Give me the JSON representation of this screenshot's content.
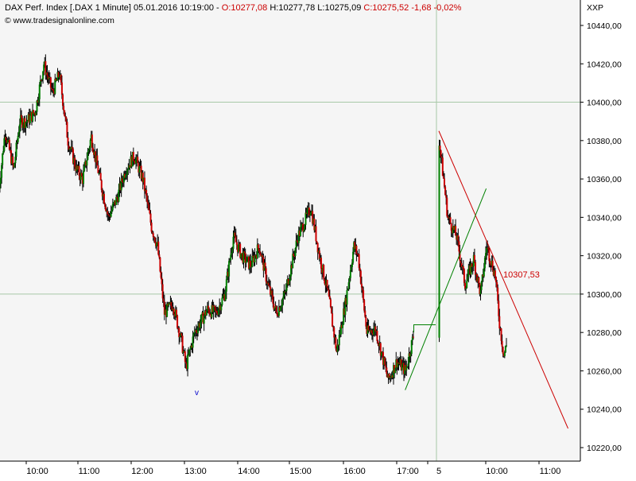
{
  "header": {
    "instrument": "DAX Perf. Index [.DAX  1 Minute]",
    "datetime": "05.01.2016 10:19:00",
    "open": "O:10277,08",
    "high": "H:10277,78",
    "low": "L:10275,09",
    "close": "C:10275,52",
    "change": "-1,68",
    "change_pct": "-0,02%",
    "source": "© www.tradesignalonline.com",
    "currency": "XXP"
  },
  "chart_data": {
    "type": "candlestick",
    "title": "DAX Perf. Index [.DAX  1 Minute]",
    "ylim": [
      10215,
      10450
    ],
    "y_ticks": [
      10220,
      10240,
      10260,
      10280,
      10300,
      10320,
      10340,
      10360,
      10380,
      10400,
      10420,
      10440
    ],
    "y_tick_labels": [
      "10220,00",
      "10240,00",
      "10260,00",
      "10280,00",
      "10300,00",
      "10320,00",
      "10340,00",
      "10360,00",
      "10380,00",
      "10400,00",
      "10420,00",
      "10440,00"
    ],
    "x_tick_labels": [
      "10:00",
      "11:00",
      "12:00",
      "13:00",
      "14:00",
      "15:00",
      "16:00",
      "17:00",
      "5",
      "10:00",
      "11:00"
    ],
    "horizontal_lines": [
      10400,
      10300
    ],
    "session_break": "5",
    "price_path": [
      {
        "t": "09:28",
        "v": 10355
      },
      {
        "t": "09:35",
        "v": 10385
      },
      {
        "t": "09:45",
        "v": 10365
      },
      {
        "t": "09:52",
        "v": 10390
      },
      {
        "t": "10:00",
        "v": 10390
      },
      {
        "t": "10:10",
        "v": 10395
      },
      {
        "t": "10:20",
        "v": 10420
      },
      {
        "t": "10:30",
        "v": 10405
      },
      {
        "t": "10:38",
        "v": 10415
      },
      {
        "t": "10:48",
        "v": 10380
      },
      {
        "t": "10:58",
        "v": 10365
      },
      {
        "t": "11:05",
        "v": 10360
      },
      {
        "t": "11:15",
        "v": 10382
      },
      {
        "t": "11:25",
        "v": 10360
      },
      {
        "t": "11:35",
        "v": 10340
      },
      {
        "t": "11:45",
        "v": 10350
      },
      {
        "t": "11:55",
        "v": 10365
      },
      {
        "t": "12:05",
        "v": 10372
      },
      {
        "t": "12:15",
        "v": 10360
      },
      {
        "t": "12:25",
        "v": 10335
      },
      {
        "t": "12:32",
        "v": 10325
      },
      {
        "t": "12:40",
        "v": 10290
      },
      {
        "t": "12:50",
        "v": 10295
      },
      {
        "t": "13:00",
        "v": 10275
      },
      {
        "t": "13:05",
        "v": 10262
      },
      {
        "t": "13:15",
        "v": 10280
      },
      {
        "t": "13:30",
        "v": 10292
      },
      {
        "t": "13:40",
        "v": 10290
      },
      {
        "t": "13:50",
        "v": 10300
      },
      {
        "t": "14:00",
        "v": 10330
      },
      {
        "t": "14:10",
        "v": 10320
      },
      {
        "t": "14:20",
        "v": 10315
      },
      {
        "t": "14:30",
        "v": 10325
      },
      {
        "t": "14:40",
        "v": 10305
      },
      {
        "t": "14:50",
        "v": 10290
      },
      {
        "t": "15:00",
        "v": 10300
      },
      {
        "t": "15:15",
        "v": 10330
      },
      {
        "t": "15:30",
        "v": 10345
      },
      {
        "t": "15:40",
        "v": 10320
      },
      {
        "t": "15:50",
        "v": 10300
      },
      {
        "t": "16:00",
        "v": 10270
      },
      {
        "t": "16:10",
        "v": 10295
      },
      {
        "t": "16:20",
        "v": 10325
      },
      {
        "t": "16:25",
        "v": 10320
      },
      {
        "t": "16:35",
        "v": 10280
      },
      {
        "t": "16:45",
        "v": 10282
      },
      {
        "t": "17:00",
        "v": 10255
      },
      {
        "t": "17:10",
        "v": 10265
      },
      {
        "t": "17:20",
        "v": 10260
      },
      {
        "t": "17:30",
        "v": 10280
      },
      {
        "t": "09:00",
        "v": 10380
      },
      {
        "t": "09:05",
        "v": 10360
      },
      {
        "t": "09:10",
        "v": 10340
      },
      {
        "t": "09:20",
        "v": 10330
      },
      {
        "t": "09:30",
        "v": 10305
      },
      {
        "t": "09:40",
        "v": 10318
      },
      {
        "t": "09:48",
        "v": 10300
      },
      {
        "t": "09:55",
        "v": 10325
      },
      {
        "t": "10:05",
        "v": 10310
      },
      {
        "t": "10:10",
        "v": 10285
      },
      {
        "t": "10:15",
        "v": 10268
      },
      {
        "t": "10:19",
        "v": 10275
      }
    ],
    "trendlines": [
      {
        "color": "#cc0000",
        "from": {
          "t": "09:00",
          "v": 10385
        },
        "to": {
          "t": "11:30",
          "v": 10230
        }
      },
      {
        "color": "#008000",
        "from": {
          "t": "17:20",
          "v": 10250
        },
        "to": {
          "t": "09:55",
          "v": 10355
        }
      }
    ],
    "annotations": [
      {
        "text": "10307,53",
        "color": "#cc0000"
      },
      {
        "text": "v",
        "color": "#0000cc"
      }
    ],
    "colors": {
      "up": "#008000",
      "down": "#cc0000",
      "wick": "#000000",
      "background": "#f5f5f5"
    }
  }
}
